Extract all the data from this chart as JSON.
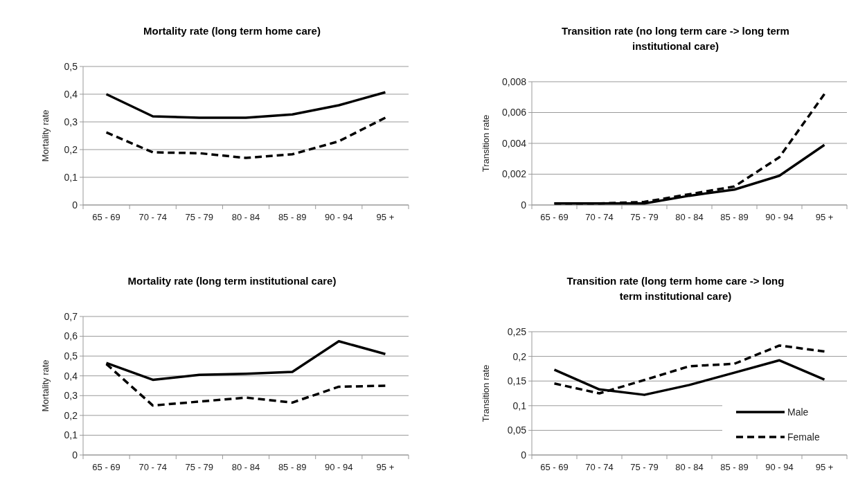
{
  "chart_data": [
    {
      "type": "line",
      "title": "Mortality rate (long term home care)",
      "ylabel": "Mortality rate",
      "categories": [
        "65 - 69",
        "70 - 74",
        "75 - 79",
        "80 - 84",
        "85 - 89",
        "90 - 94",
        "95 +"
      ],
      "ylim": [
        0,
        0.5
      ],
      "yticks": [
        {
          "value": 0,
          "label": "0"
        },
        {
          "value": 0.1,
          "label": "0,1"
        },
        {
          "value": 0.2,
          "label": "0,2"
        },
        {
          "value": 0.3,
          "label": "0,3"
        },
        {
          "value": 0.4,
          "label": "0,4"
        },
        {
          "value": 0.5,
          "label": "0,5"
        }
      ],
      "grid": "y",
      "legend": false,
      "series": [
        {
          "color": "#000000",
          "line_style": "solid",
          "values": [
            0.4,
            0.32,
            0.315,
            0.315,
            0.327,
            0.36,
            0.407
          ]
        },
        {
          "color": "#000000",
          "line_style": "dashed",
          "values": [
            0.262,
            0.19,
            0.187,
            0.17,
            0.183,
            0.23,
            0.315
          ]
        }
      ]
    },
    {
      "type": "line",
      "title": "Transition rate (no long term care -> long term institutional care)",
      "ylabel": "Transition rate",
      "categories": [
        "65 - 69",
        "70 - 74",
        "75 - 79",
        "80 - 84",
        "85 - 89",
        "90 - 94",
        "95 +"
      ],
      "ylim": [
        0,
        0.008
      ],
      "yticks": [
        {
          "value": 0,
          "label": "0"
        },
        {
          "value": 0.002,
          "label": "0,002"
        },
        {
          "value": 0.004,
          "label": "0,004"
        },
        {
          "value": 0.006,
          "label": "0,006"
        },
        {
          "value": 0.008,
          "label": "0,008"
        }
      ],
      "grid": "y",
      "legend": false,
      "series": [
        {
          "color": "#000000",
          "line_style": "solid",
          "values": [
            0.0001,
            0.0001,
            0.0001,
            0.0006,
            0.001,
            0.0019,
            0.0039
          ]
        },
        {
          "color": "#000000",
          "line_style": "dashed",
          "values": [
            0.0001,
            0.0001,
            0.0002,
            0.0007,
            0.0012,
            0.0031,
            0.0072
          ]
        }
      ]
    },
    {
      "type": "line",
      "title": "Mortality rate (long term institutional care)",
      "ylabel": "Mortality rate",
      "categories": [
        "65 - 69",
        "70 - 74",
        "75 - 79",
        "80 - 84",
        "85 - 89",
        "90 - 94",
        "95 +"
      ],
      "ylim": [
        0,
        0.7
      ],
      "yticks": [
        {
          "value": 0,
          "label": "0"
        },
        {
          "value": 0.1,
          "label": "0,1"
        },
        {
          "value": 0.2,
          "label": "0,2"
        },
        {
          "value": 0.3,
          "label": "0,3"
        },
        {
          "value": 0.4,
          "label": "0,4"
        },
        {
          "value": 0.5,
          "label": "0,5"
        },
        {
          "value": 0.6,
          "label": "0,6"
        },
        {
          "value": 0.7,
          "label": "0,7"
        }
      ],
      "grid": "y",
      "legend": false,
      "series": [
        {
          "color": "#000000",
          "line_style": "solid",
          "values": [
            0.465,
            0.38,
            0.405,
            0.41,
            0.42,
            0.575,
            0.51
          ]
        },
        {
          "color": "#000000",
          "line_style": "dashed",
          "values": [
            0.46,
            0.25,
            0.27,
            0.29,
            0.265,
            0.345,
            0.35
          ]
        }
      ]
    },
    {
      "type": "line",
      "title": "Transition rate (long term home care -> long term institutional care)",
      "ylabel": "Transition rate",
      "categories": [
        "65 - 69",
        "70 - 74",
        "75 - 79",
        "80 - 84",
        "85 - 89",
        "90 - 94",
        "95 +"
      ],
      "ylim": [
        0,
        0.25
      ],
      "yticks": [
        {
          "value": 0,
          "label": "0"
        },
        {
          "value": 0.05,
          "label": "0,05"
        },
        {
          "value": 0.1,
          "label": "0,1"
        },
        {
          "value": 0.15,
          "label": "0,15"
        },
        {
          "value": 0.2,
          "label": "0,2"
        },
        {
          "value": 0.25,
          "label": "0,25"
        }
      ],
      "grid": "y",
      "legend": "bottom right",
      "series": [
        {
          "name": "Male",
          "color": "#000000",
          "line_style": "solid",
          "values": [
            0.173,
            0.133,
            0.122,
            0.142,
            0.167,
            0.192,
            0.153
          ]
        },
        {
          "name": "Female",
          "color": "#000000",
          "line_style": "dashed",
          "values": [
            0.145,
            0.125,
            0.152,
            0.18,
            0.185,
            0.222,
            0.21
          ]
        }
      ]
    }
  ]
}
